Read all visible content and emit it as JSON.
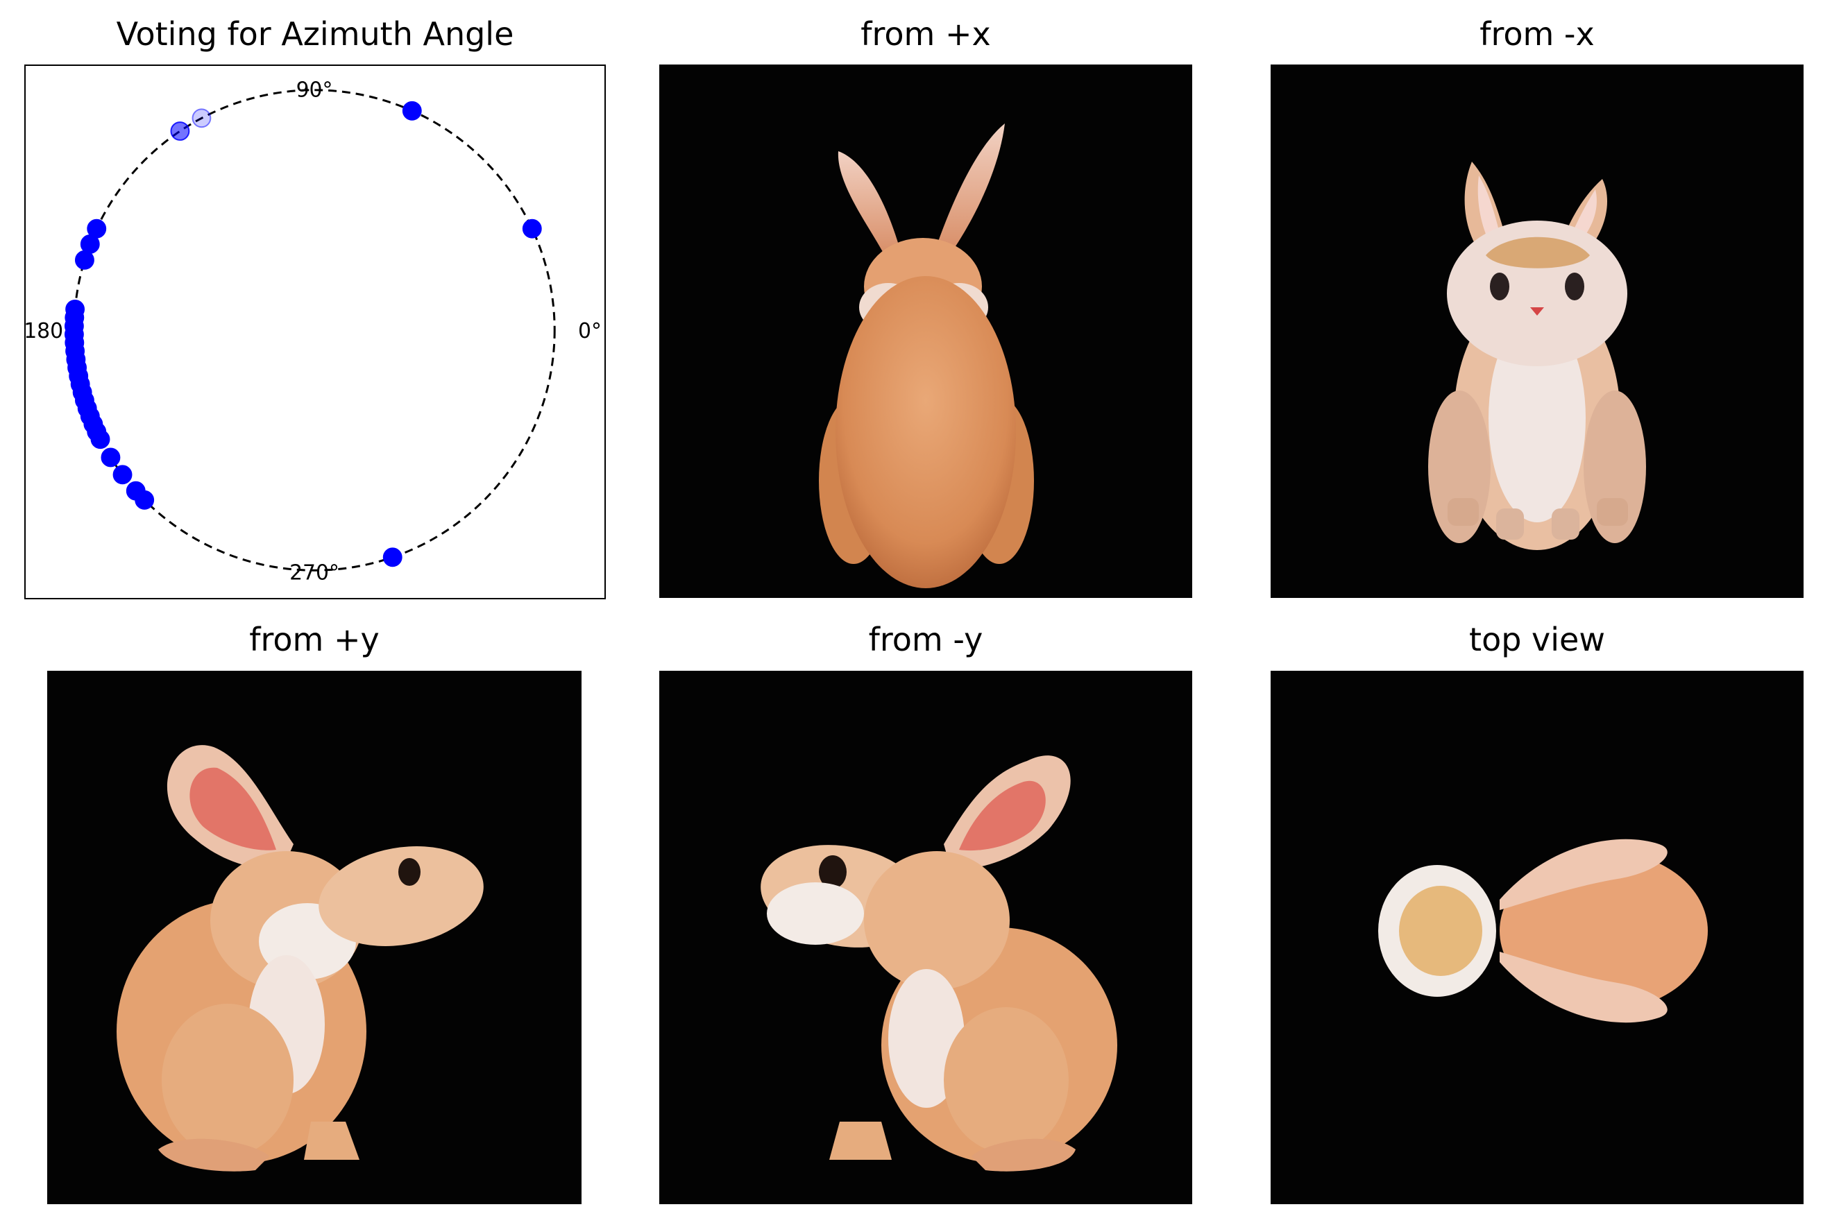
{
  "panels": [
    {
      "id": "azimuth",
      "title": "Voting for Azimuth Angle"
    },
    {
      "id": "from-pos-x",
      "title": "from +x"
    },
    {
      "id": "from-neg-x",
      "title": "from -x"
    },
    {
      "id": "from-pos-y",
      "title": "from +y"
    },
    {
      "id": "from-neg-y",
      "title": "from -y"
    },
    {
      "id": "top-view",
      "title": "top view"
    }
  ],
  "chart_data": {
    "type": "scatter",
    "title": "Voting for Azimuth Angle",
    "coordinate_system": "polar",
    "angle_unit": "degrees",
    "angle_tick_labels": [
      "0°",
      "90°",
      "180°",
      "270°"
    ],
    "marker_color": "#0000ff",
    "circle_style": "dashed",
    "votes_azimuth_deg": [
      66,
      25,
      118,
      124,
      155,
      159,
      163,
      175,
      177,
      179,
      181,
      183,
      185,
      187,
      189,
      191,
      193,
      195,
      197,
      199,
      201,
      203,
      205,
      207,
      212,
      217,
      222,
      225,
      289
    ],
    "vote_opacity": [
      1,
      1,
      0.2,
      0.55,
      1,
      1,
      1,
      1,
      1,
      1,
      1,
      1,
      1,
      1,
      1,
      1,
      1,
      1,
      1,
      1,
      1,
      1,
      1,
      1,
      1,
      1,
      1,
      1,
      1
    ]
  }
}
